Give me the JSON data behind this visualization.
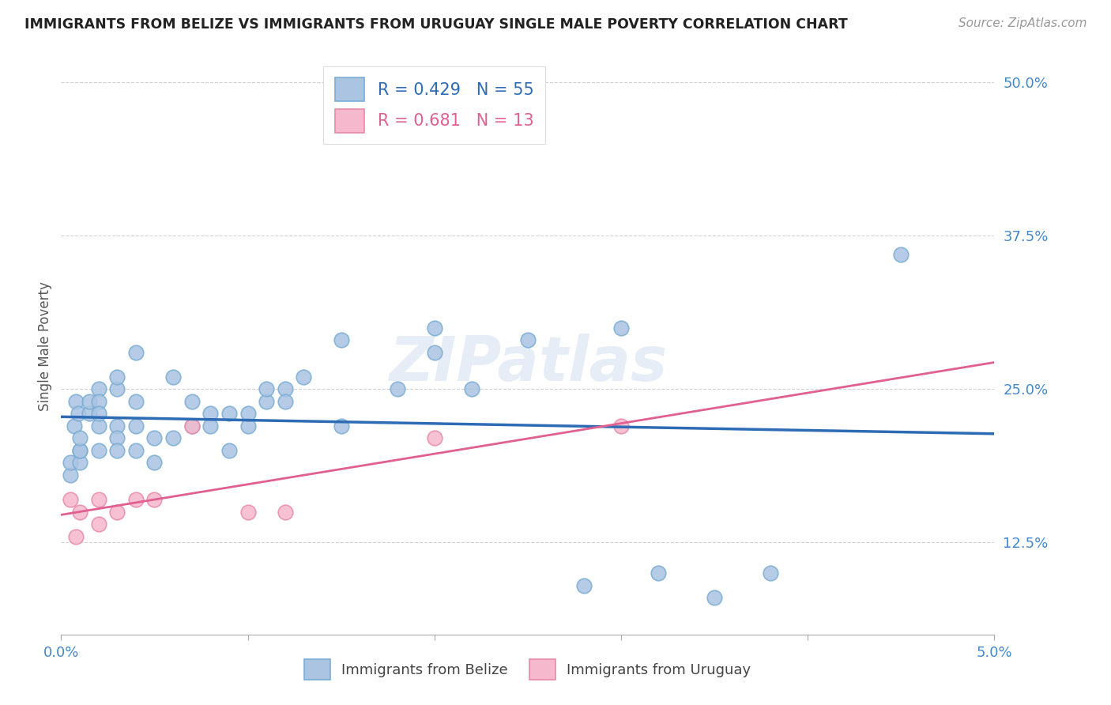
{
  "title": "IMMIGRANTS FROM BELIZE VS IMMIGRANTS FROM URUGUAY SINGLE MALE POVERTY CORRELATION CHART",
  "source": "Source: ZipAtlas.com",
  "xlabel": "",
  "ylabel": "Single Male Poverty",
  "xlim": [
    0.0,
    0.05
  ],
  "ylim": [
    0.05,
    0.52
  ],
  "xticks": [
    0.0,
    0.01,
    0.02,
    0.03,
    0.04,
    0.05
  ],
  "xticklabels": [
    "0.0%",
    "",
    "",
    "",
    "",
    "5.0%"
  ],
  "yticks": [
    0.125,
    0.25,
    0.375,
    0.5
  ],
  "yticklabels": [
    "12.5%",
    "25.0%",
    "37.5%",
    "50.0%"
  ],
  "belize_color": "#aac4e2",
  "belize_edge": "#7aadd4",
  "belize_line_color": "#2e6bb5",
  "uruguay_color": "#f5b8cc",
  "uruguay_edge": "#e88aaa",
  "uruguay_line_color": "#e06090",
  "R_belize": 0.429,
  "N_belize": 55,
  "R_uruguay": 0.681,
  "N_uruguay": 13,
  "belize_x": [
    0.0005,
    0.0005,
    0.0007,
    0.0008,
    0.0009,
    0.001,
    0.001,
    0.001,
    0.001,
    0.0015,
    0.0015,
    0.002,
    0.002,
    0.002,
    0.002,
    0.002,
    0.003,
    0.003,
    0.003,
    0.003,
    0.003,
    0.004,
    0.004,
    0.004,
    0.004,
    0.005,
    0.005,
    0.006,
    0.006,
    0.007,
    0.007,
    0.008,
    0.008,
    0.009,
    0.009,
    0.01,
    0.01,
    0.011,
    0.011,
    0.012,
    0.012,
    0.013,
    0.015,
    0.015,
    0.018,
    0.02,
    0.02,
    0.022,
    0.025,
    0.028,
    0.03,
    0.032,
    0.035,
    0.038,
    0.045
  ],
  "belize_y": [
    0.18,
    0.19,
    0.22,
    0.24,
    0.23,
    0.19,
    0.2,
    0.2,
    0.21,
    0.23,
    0.24,
    0.25,
    0.24,
    0.22,
    0.2,
    0.23,
    0.22,
    0.21,
    0.2,
    0.25,
    0.26,
    0.28,
    0.24,
    0.22,
    0.2,
    0.19,
    0.21,
    0.21,
    0.26,
    0.22,
    0.24,
    0.23,
    0.22,
    0.2,
    0.23,
    0.22,
    0.23,
    0.24,
    0.25,
    0.25,
    0.24,
    0.26,
    0.22,
    0.29,
    0.25,
    0.28,
    0.3,
    0.25,
    0.29,
    0.09,
    0.3,
    0.1,
    0.08,
    0.1,
    0.36
  ],
  "uruguay_x": [
    0.0005,
    0.0008,
    0.001,
    0.002,
    0.002,
    0.003,
    0.004,
    0.005,
    0.007,
    0.01,
    0.012,
    0.02,
    0.03
  ],
  "uruguay_y": [
    0.16,
    0.13,
    0.15,
    0.14,
    0.16,
    0.15,
    0.16,
    0.16,
    0.22,
    0.15,
    0.15,
    0.21,
    0.22
  ],
  "watermark": "ZIPatlas",
  "background_color": "#ffffff",
  "grid_color": "#cccccc"
}
